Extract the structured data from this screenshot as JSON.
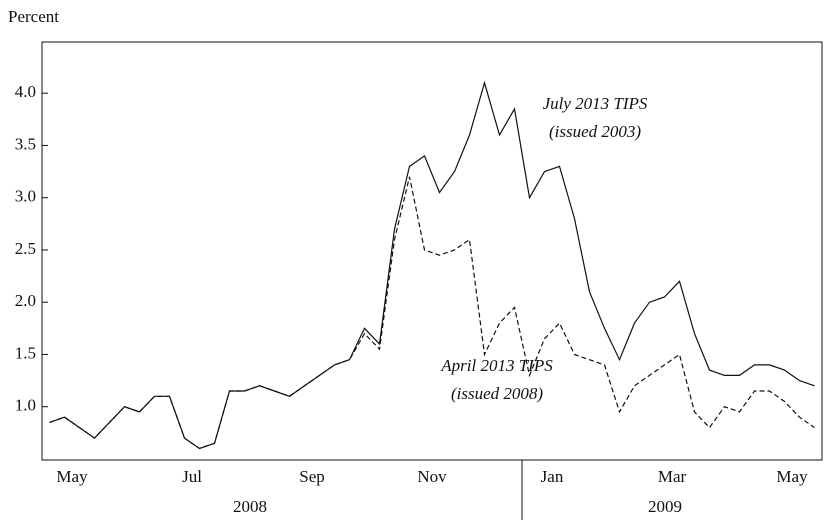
{
  "chart_data": {
    "type": "line",
    "y_label": "Percent",
    "categories": [
      null,
      null,
      "May",
      null,
      null,
      null,
      null,
      null,
      null,
      null,
      "Jul",
      null,
      null,
      null,
      null,
      null,
      null,
      null,
      "Sep",
      null,
      null,
      null,
      null,
      null,
      null,
      null,
      "Nov",
      null,
      null,
      null,
      null,
      null,
      null,
      null,
      "Jan",
      null,
      null,
      null,
      null,
      null,
      null,
      null,
      "Mar",
      null,
      null,
      null,
      null,
      null,
      null,
      null,
      "May",
      null
    ],
    "year_labels": [
      "2008",
      "2009"
    ],
    "series": [
      {
        "name": "July 2013 TIPS",
        "color": "#111111",
        "dash": false,
        "values": [
          0.85,
          0.9,
          0.8,
          0.7,
          0.85,
          1.0,
          0.95,
          1.1,
          1.1,
          0.7,
          0.6,
          0.65,
          1.15,
          1.15,
          1.2,
          1.15,
          1.1,
          1.2,
          1.3,
          1.4,
          1.45,
          1.75,
          1.6,
          2.7,
          3.3,
          3.4,
          3.05,
          3.25,
          3.6,
          4.1,
          3.6,
          3.85,
          3.0,
          3.25,
          3.3,
          2.8,
          2.1,
          1.75,
          1.45,
          1.8,
          2.0,
          2.05,
          2.2,
          1.7,
          1.35,
          1.3,
          1.3,
          1.4,
          1.4,
          1.35,
          1.25,
          1.2
        ]
      },
      {
        "name": "April 2013 TIPS",
        "color": "#111111",
        "dash": true,
        "values": [
          0.85,
          0.9,
          0.8,
          0.7,
          0.85,
          1.0,
          0.95,
          1.1,
          1.1,
          0.7,
          0.6,
          0.65,
          1.15,
          1.15,
          1.2,
          1.15,
          1.1,
          1.2,
          1.3,
          1.4,
          1.45,
          1.7,
          1.55,
          2.6,
          3.2,
          2.5,
          2.45,
          2.5,
          2.6,
          1.5,
          1.8,
          1.95,
          1.3,
          1.65,
          1.8,
          1.5,
          1.45,
          1.4,
          0.95,
          1.2,
          1.3,
          1.4,
          1.5,
          0.95,
          0.8,
          1.0,
          0.95,
          1.15,
          1.15,
          1.05,
          0.9,
          0.8
        ]
      }
    ],
    "annotations": [
      {
        "lines": [
          "July 2013 TIPS",
          "(issued 2003)"
        ]
      },
      {
        "lines": [
          "April 2013 TIPS",
          "(issued 2008)"
        ]
      }
    ],
    "ylim": [
      0.49,
      4.49
    ],
    "yticks": [
      {
        "value": 1.0,
        "label": "1.0"
      },
      {
        "value": 1.5,
        "label": "1.5"
      },
      {
        "value": 2.0,
        "label": "2.0"
      },
      {
        "value": 2.5,
        "label": "2.5"
      },
      {
        "value": 3.0,
        "label": "3.0"
      },
      {
        "value": 3.5,
        "label": "3.5"
      },
      {
        "value": 4.0,
        "label": "4.0"
      }
    ]
  }
}
